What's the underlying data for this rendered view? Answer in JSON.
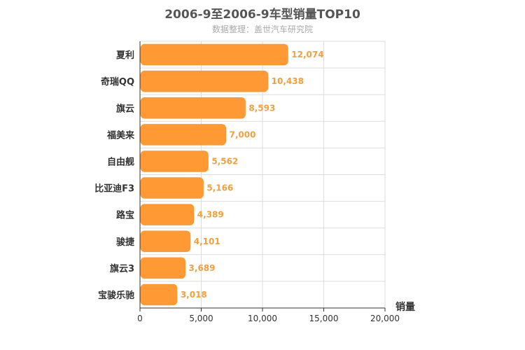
{
  "chart_data": {
    "type": "bar",
    "orientation": "horizontal",
    "title": "2006-9至2006-9车型销量TOP10",
    "subtitle": "数据整理：盖世汽车研究院",
    "categories": [
      "夏利",
      "奇瑞QQ",
      "旗云",
      "福美来",
      "自由舰",
      "比亚迪F3",
      "路宝",
      "骏捷",
      "旗云3",
      "宝骏乐驰"
    ],
    "values": [
      12074,
      10438,
      8593,
      7000,
      5562,
      5166,
      4389,
      4101,
      3689,
      3018
    ],
    "value_labels": [
      "12,074",
      "10,438",
      "8,593",
      "7,000",
      "5,562",
      "5,166",
      "4,389",
      "4,101",
      "3,689",
      "3,018"
    ],
    "xlabel": "销量",
    "xlim": [
      0,
      20000
    ],
    "xticks": [
      0,
      5000,
      10000,
      15000,
      20000
    ],
    "xtick_labels": [
      "0",
      "5,000",
      "10,000",
      "15,000",
      "20,000"
    ],
    "grid": true,
    "colors": {
      "bar": "#ff9933",
      "label": "#f2a03d",
      "grid": "#dddddd",
      "axis": "#333333"
    }
  }
}
